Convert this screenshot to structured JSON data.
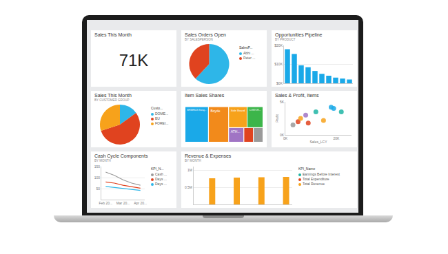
{
  "chart_data": [
    {
      "type": "card",
      "title": "Sales This Month",
      "values": [
        71000
      ],
      "value_labels": [
        "71K"
      ]
    },
    {
      "type": "pie",
      "title": "Sales Orders Open",
      "subtitle": "BY SALESPERSON",
      "legend_title": "SalesP...",
      "categories": [
        "Abhi ...",
        "Peter ..."
      ],
      "values": [
        62,
        38
      ],
      "colors": [
        "#2eb6e8",
        "#e0431f"
      ],
      "legend": "right"
    },
    {
      "type": "bar",
      "title": "Opportunities Pipeline",
      "subtitle": "BY PRODUCT",
      "categories": [
        null,
        null,
        null,
        null,
        null,
        null,
        null,
        null,
        null,
        null
      ],
      "values": [
        18000,
        15500,
        9500,
        8500,
        6500,
        5000,
        4000,
        3000,
        2500,
        2000
      ],
      "color": "#1aa9e8",
      "ylim": [
        0,
        20000
      ],
      "yticks": [
        {
          "value": 0,
          "label": "$0K"
        },
        {
          "value": 10000,
          "label": "$10K"
        },
        {
          "value": 20000,
          "label": "$20K"
        }
      ],
      "tick_labels": "y",
      "grid": true
    },
    {
      "type": "pie",
      "title": "Sales This Month",
      "subtitle": "BY CUSTOMER GROUP",
      "legend_title": "Custo...",
      "categories": [
        "DOME...",
        "EU",
        "FOREI..."
      ],
      "values": [
        15,
        55,
        30
      ],
      "colors": [
        "#2eb6e8",
        "#e0431f",
        "#f7a21b"
      ],
      "legend": "right"
    },
    {
      "type": "treemap",
      "title": "Item Sales Shares",
      "categories": [
        "BIRSBRUCK Storag...",
        "Side Board",
        "ATH...",
        "Boyde",
        "CONTOR...",
        null,
        null
      ],
      "values": [
        30,
        14,
        8,
        26,
        12,
        5,
        5
      ],
      "colors": [
        "#1aa9e8",
        "#f7a21b",
        "#a074c4",
        "#f28a1b",
        "#3cb54a",
        "#e0431f",
        "#9a9a9a"
      ]
    },
    {
      "type": "scatter",
      "title": "Sales & Profit, Items",
      "x_label": "Sales_LCY",
      "y_label": "Profit",
      "x": [
        3000,
        5000,
        6000,
        8000,
        9000,
        12000,
        15000,
        18000,
        19000,
        22000
      ],
      "values": [
        1500,
        2000,
        2500,
        3000,
        1800,
        3500,
        2200,
        4200,
        4000,
        3500
      ],
      "colors": [
        "#9a9a9a",
        "#e0431f",
        "#f7a21b",
        "#a074c4",
        "#e0431f",
        "#1fb5a5",
        "#f7a21b",
        "#1aa9e8",
        "#1aa9e8",
        "#1fb5a5"
      ],
      "xlim": [
        0,
        26000
      ],
      "xticks": [
        {
          "value": 0,
          "label": "0K"
        },
        {
          "value": 20000,
          "label": "20K"
        }
      ],
      "ylim": [
        0,
        5000
      ],
      "yticks": [
        {
          "value": 0,
          "label": "0K"
        },
        {
          "value": 5000,
          "label": "5K"
        }
      ]
    },
    {
      "type": "line",
      "title": "Cash Cycle Components",
      "subtitle": "BY MONTH",
      "legend_title": "KPI_N...",
      "categories": [
        "Feb 20...",
        null,
        "Mar 20...",
        null,
        "Apr 20..."
      ],
      "series": [
        {
          "name": "Cash ...",
          "color": "#9a9a9a",
          "values": [
            125,
            110,
            90,
            75,
            65
          ]
        },
        {
          "name": "Days ...",
          "color": "#e0431f",
          "values": [
            80,
            75,
            65,
            58,
            52
          ]
        },
        {
          "name": "Days ...",
          "color": "#2eb6e8",
          "values": [
            60,
            55,
            50,
            45,
            42
          ]
        }
      ],
      "ylim": [
        0,
        150
      ],
      "yticks": [
        50,
        100,
        150
      ],
      "grid": true,
      "legend": "right"
    },
    {
      "type": "bar",
      "title": "Revenue & Expenses",
      "subtitle": "BY MONTH",
      "legend_title": "KPI_Name",
      "categories": [
        null,
        null,
        null,
        null
      ],
      "series": [
        {
          "name": "Earnings Before Interest",
          "color": "#1fb5a5",
          "values": [
            null,
            null,
            null,
            null
          ]
        },
        {
          "name": "Total Expenditure",
          "color": "#e0431f",
          "values": [
            null,
            null,
            null,
            null
          ]
        },
        {
          "name": "Total Revenue",
          "color": "#f7a21b",
          "values": [
            760000,
            780000,
            790000,
            800000
          ]
        }
      ],
      "ylim": [
        0,
        1100000
      ],
      "yticks": [
        {
          "value": 500000,
          "label": "0.5M"
        },
        {
          "value": 1000000,
          "label": "1M"
        }
      ],
      "tick_labels": "y",
      "grid": true,
      "legend": "right"
    }
  ]
}
